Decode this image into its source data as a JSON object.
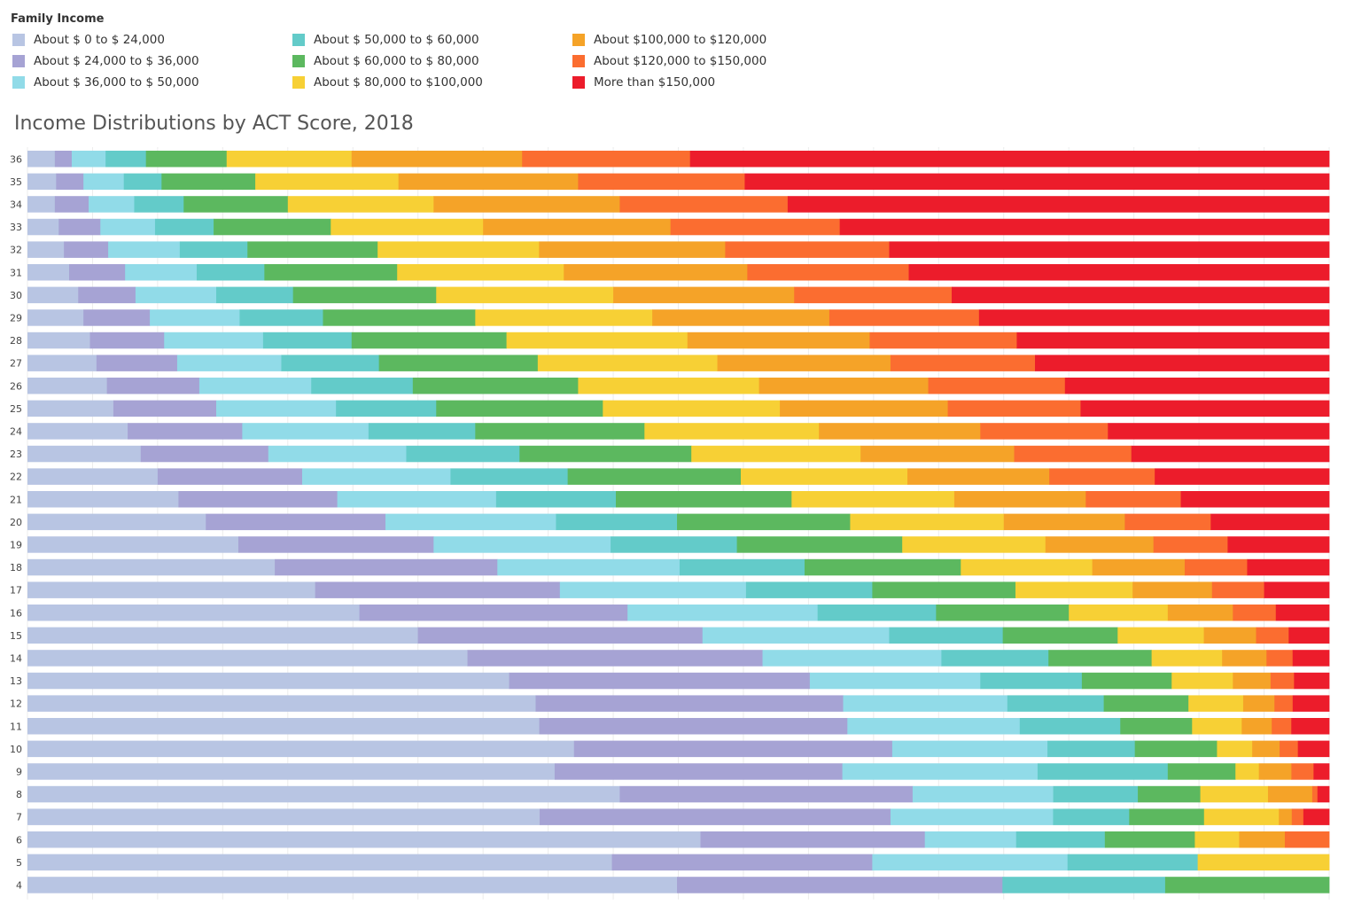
{
  "legend": {
    "title": "Family Income",
    "items": [
      {
        "label": "About $ 0 to $ 24,000",
        "color": "#b8c5e3"
      },
      {
        "label": "About $ 24,000 to $ 36,000",
        "color": "#a6a3d4"
      },
      {
        "label": "About $ 36,000 to $ 50,000",
        "color": "#91dbe8"
      },
      {
        "label": "About $ 50,000 to $ 60,000",
        "color": "#63cbc9"
      },
      {
        "label": "About $ 60,000 to $ 80,000",
        "color": "#5cb85f"
      },
      {
        "label": "About $ 80,000 to $100,000",
        "color": "#f7d035"
      },
      {
        "label": "About $100,000 to $120,000",
        "color": "#f5a328"
      },
      {
        "label": "About $120,000 to $150,000",
        "color": "#fb6d30"
      },
      {
        "label": "More than $150,000",
        "color": "#ec1c2b"
      }
    ]
  },
  "chart_data": {
    "type": "bar",
    "orientation": "horizontal",
    "stacked": "100%",
    "title": "Income Distributions by ACT Score, 2018",
    "xlabel": "",
    "ylabel": "",
    "xlim": [
      0,
      100
    ],
    "categories": [
      "36",
      "35",
      "34",
      "33",
      "32",
      "31",
      "30",
      "29",
      "28",
      "27",
      "26",
      "25",
      "24",
      "23",
      "22",
      "21",
      "20",
      "19",
      "18",
      "17",
      "16",
      "15",
      "14",
      "13",
      "12",
      "11",
      "10",
      "9",
      "8",
      "7",
      "6",
      "5",
      "4"
    ],
    "series": [
      {
        "name": "About $ 0 to $ 24,000",
        "values": [
          2.1,
          2.2,
          2.1,
          2.4,
          2.8,
          3.2,
          3.9,
          4.3,
          4.8,
          5.3,
          6.1,
          6.6,
          7.7,
          8.7,
          10.0,
          11.6,
          13.7,
          16.2,
          19.0,
          22.1,
          25.5,
          29.9,
          33.7,
          37.0,
          39.0,
          39.2,
          41.9,
          40.5,
          45.5,
          39.7,
          51.6,
          44.9,
          49.9
        ]
      },
      {
        "name": "About $ 24,000 to $ 36,000",
        "values": [
          1.3,
          2.1,
          2.6,
          3.2,
          3.4,
          4.3,
          4.4,
          5.1,
          5.7,
          6.2,
          7.1,
          7.9,
          8.8,
          9.8,
          11.1,
          12.2,
          13.8,
          15.0,
          17.1,
          18.8,
          20.6,
          21.8,
          22.6,
          23.1,
          23.6,
          23.6,
          24.4,
          22.1,
          22.5,
          27.2,
          17.2,
          20.0,
          25.0
        ]
      },
      {
        "name": "About $ 36,000 to $ 50,000",
        "values": [
          2.6,
          3.1,
          3.5,
          4.2,
          5.5,
          5.5,
          6.2,
          6.9,
          7.6,
          8.0,
          8.6,
          9.2,
          9.7,
          10.6,
          11.4,
          12.2,
          13.1,
          13.6,
          14.0,
          14.3,
          14.6,
          14.3,
          13.7,
          13.1,
          12.6,
          13.2,
          11.9,
          15.0,
          10.8,
          12.6,
          7.0,
          15.0,
          0.0
        ]
      },
      {
        "name": "About $ 50,000 to $ 60,000",
        "values": [
          3.1,
          2.9,
          3.8,
          4.5,
          5.2,
          5.2,
          5.9,
          6.4,
          6.8,
          7.5,
          7.8,
          7.7,
          8.2,
          8.7,
          9.0,
          9.2,
          9.3,
          9.7,
          9.6,
          9.7,
          9.1,
          8.7,
          8.2,
          7.8,
          7.4,
          7.7,
          6.7,
          10.0,
          6.5,
          5.9,
          6.8,
          10.0,
          12.5
        ]
      },
      {
        "name": "About $ 60,000 to $ 80,000",
        "values": [
          6.2,
          7.2,
          8.0,
          9.0,
          10.0,
          10.2,
          11.0,
          11.7,
          11.9,
          12.2,
          12.7,
          12.8,
          13.0,
          13.2,
          13.3,
          13.5,
          13.3,
          12.7,
          12.0,
          11.0,
          10.2,
          8.8,
          7.9,
          6.9,
          6.5,
          5.5,
          6.3,
          5.2,
          4.8,
          5.8,
          6.9,
          0.0,
          12.6
        ]
      },
      {
        "name": "About $ 80,000 to $100,000",
        "values": [
          9.6,
          11.0,
          11.2,
          11.7,
          12.4,
          12.8,
          13.6,
          13.6,
          13.9,
          13.8,
          13.9,
          13.6,
          13.4,
          13.0,
          12.8,
          12.5,
          11.8,
          11.0,
          10.1,
          9.0,
          7.6,
          6.6,
          5.4,
          4.7,
          4.2,
          3.8,
          2.7,
          1.8,
          5.2,
          5.8,
          3.4,
          10.1,
          0.0
        ]
      },
      {
        "name": "About $100,000 to $120,000",
        "values": [
          13.1,
          13.8,
          14.3,
          14.4,
          14.3,
          14.1,
          13.9,
          13.6,
          14.0,
          13.3,
          13.0,
          12.9,
          12.4,
          11.8,
          10.9,
          10.1,
          9.3,
          8.3,
          7.1,
          6.1,
          5.0,
          4.0,
          3.4,
          2.9,
          2.4,
          2.3,
          2.1,
          2.5,
          3.4,
          1.0,
          3.5,
          0.0,
          0.0
        ]
      },
      {
        "name": "About $120,000 to $150,000",
        "values": [
          12.9,
          12.8,
          12.9,
          13.0,
          12.6,
          12.4,
          12.1,
          11.5,
          11.3,
          11.1,
          10.5,
          10.2,
          9.8,
          9.0,
          8.1,
          7.3,
          6.6,
          5.7,
          4.8,
          4.0,
          3.3,
          2.5,
          2.0,
          1.8,
          1.4,
          1.5,
          1.4,
          1.7,
          0.4,
          0.9,
          3.4,
          0.0,
          0.0
        ]
      },
      {
        "name": "More than $150,000",
        "values": [
          49.1,
          44.9,
          41.6,
          37.6,
          33.8,
          32.3,
          29.0,
          26.9,
          24.0,
          22.6,
          20.3,
          19.1,
          17.0,
          15.2,
          13.4,
          11.4,
          9.1,
          7.8,
          6.3,
          5.0,
          4.1,
          3.1,
          2.8,
          2.7,
          2.8,
          2.9,
          2.4,
          1.2,
          0.9,
          2.0,
          0.0,
          0.0,
          0.0
        ]
      }
    ]
  }
}
